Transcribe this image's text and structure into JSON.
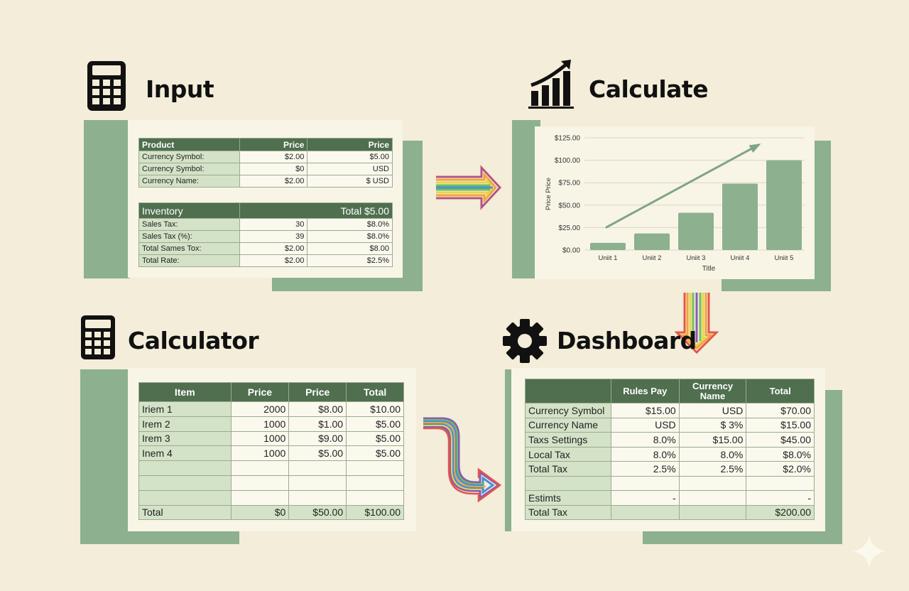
{
  "sections": {
    "input": "Input",
    "calculate": "Calculate",
    "calculator": "Calculator",
    "dashboard": "Dashboard"
  },
  "icons": {
    "input": "calculator-icon",
    "calculate": "growth-chart-icon",
    "calculator": "calculator-icon",
    "dashboard": "gear-icon",
    "corner": "sparkle-icon"
  },
  "colors": {
    "background": "#f3edd9",
    "accent_green": "#8db08e",
    "header_green": "#4f6f4f",
    "label_green": "#d4e3c8"
  },
  "input_table": {
    "headers": [
      "Product",
      "Price",
      "Price"
    ],
    "rows": [
      [
        "Currency Symbol:",
        "$2.00",
        "$5.00"
      ],
      [
        "Currency Symbol:",
        "$0",
        "USD"
      ],
      [
        "Currency Name:",
        "$2.00",
        "$ USD"
      ]
    ]
  },
  "inventory_table": {
    "title": "Inventory",
    "total": "Total $5.00",
    "rows": [
      [
        "Sales Tax:",
        "30",
        "$8.0%"
      ],
      [
        "Sales Tax (%):",
        "39",
        "$8.0%"
      ],
      [
        "Total Sames Tox:",
        "$2.00",
        "$8.00"
      ],
      [
        "Total Rate:",
        "$2.00",
        "$2.5%"
      ]
    ]
  },
  "chart_data": {
    "type": "bar",
    "categories": [
      "Uniit 1",
      "Uniit 2",
      "Uniit 3",
      "Uniit 4",
      "Uniit 5"
    ],
    "values": [
      8,
      18.5,
      41.5,
      74,
      100
    ],
    "ylabel": "Price Price",
    "xlabel": "Title",
    "ylim": [
      0,
      125
    ],
    "y_ticks": [
      "$0.00",
      "$25.00",
      "$50.00",
      "$75.00",
      "$100.00",
      "$125.00"
    ],
    "y_tick_values": [
      0,
      25,
      50,
      75,
      100,
      125
    ],
    "trend_arrow": true,
    "grid": true
  },
  "calculator_table": {
    "headers": [
      "Item",
      "Price",
      "Price",
      "Total"
    ],
    "rows": [
      [
        "Iriem 1",
        "2000",
        "$8.00",
        "$10.00"
      ],
      [
        "Irem 2",
        "1000",
        "$1.00",
        "$5.00"
      ],
      [
        "Irem 3",
        "1000",
        "$9.00",
        "$5.00"
      ],
      [
        "Inem 4",
        "1000",
        "$5.00",
        "$5.00"
      ],
      [
        "",
        "",
        "",
        ""
      ],
      [
        "",
        "",
        "",
        ""
      ],
      [
        "",
        "",
        "",
        ""
      ]
    ],
    "total": [
      "Total",
      "$0",
      "$50.00",
      "$100.00"
    ]
  },
  "dashboard_table": {
    "headers": [
      "",
      "Rules Pay",
      "Currency Name",
      "Total"
    ],
    "rows": [
      [
        "Currency Symbol",
        "$15.00",
        "USD",
        "$70.00"
      ],
      [
        "Currency Name",
        "USD",
        "$ 3%",
        "$15.00"
      ],
      [
        "Taxs Settings",
        "8.0%",
        "$15.00",
        "$45.00"
      ],
      [
        "Local Tax",
        "8.0%",
        "8.0%",
        "$8.0%"
      ],
      [
        "Total Tax",
        "2.5%",
        "2.5%",
        "$2.0%"
      ],
      [
        "",
        "",
        "",
        ""
      ],
      [
        "Estimts",
        "-",
        "",
        "-"
      ],
      [
        "Total Tax",
        "",
        "",
        "$200.00"
      ]
    ]
  }
}
